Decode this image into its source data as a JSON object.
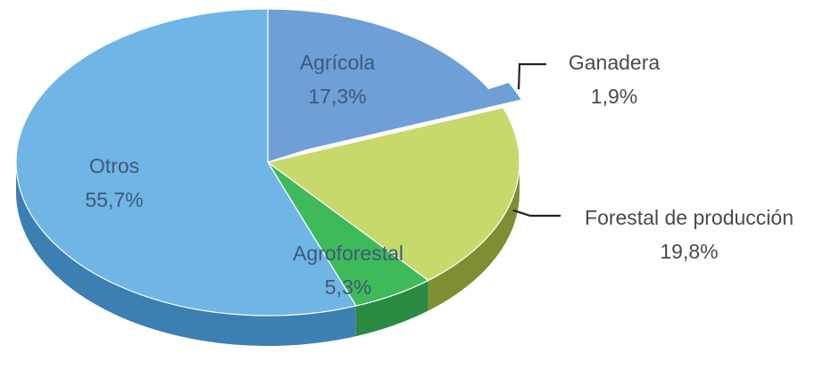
{
  "chart_data": {
    "type": "pie",
    "style": "3d-exploded",
    "slices": [
      {
        "label": "Agrícola",
        "value_label": "17,3%",
        "value": 17.3,
        "color": "#6e9fd6",
        "side_color": "#4f7fb0",
        "label_placement": "inside"
      },
      {
        "label": "Ganadera",
        "value_label": "1,9%",
        "value": 1.9,
        "color": "#6e9fd6",
        "side_color": "#4f7fb0",
        "label_placement": "outside",
        "exploded": true
      },
      {
        "label": "Forestal de producción",
        "value_label": "19,8%",
        "value": 19.8,
        "color": "#c6d96a",
        "side_color": "#7f8e33",
        "label_placement": "outside"
      },
      {
        "label": "Agroforestal",
        "value_label": "5,3%",
        "value": 5.3,
        "color": "#3fba5a",
        "side_color": "#2a8a42",
        "label_placement": "inside"
      },
      {
        "label": "Otros",
        "value_label": "55,7%",
        "value": 55.7,
        "color": "#6fb6e6",
        "side_color": "#3c7fb2",
        "label_placement": "inside"
      }
    ]
  }
}
